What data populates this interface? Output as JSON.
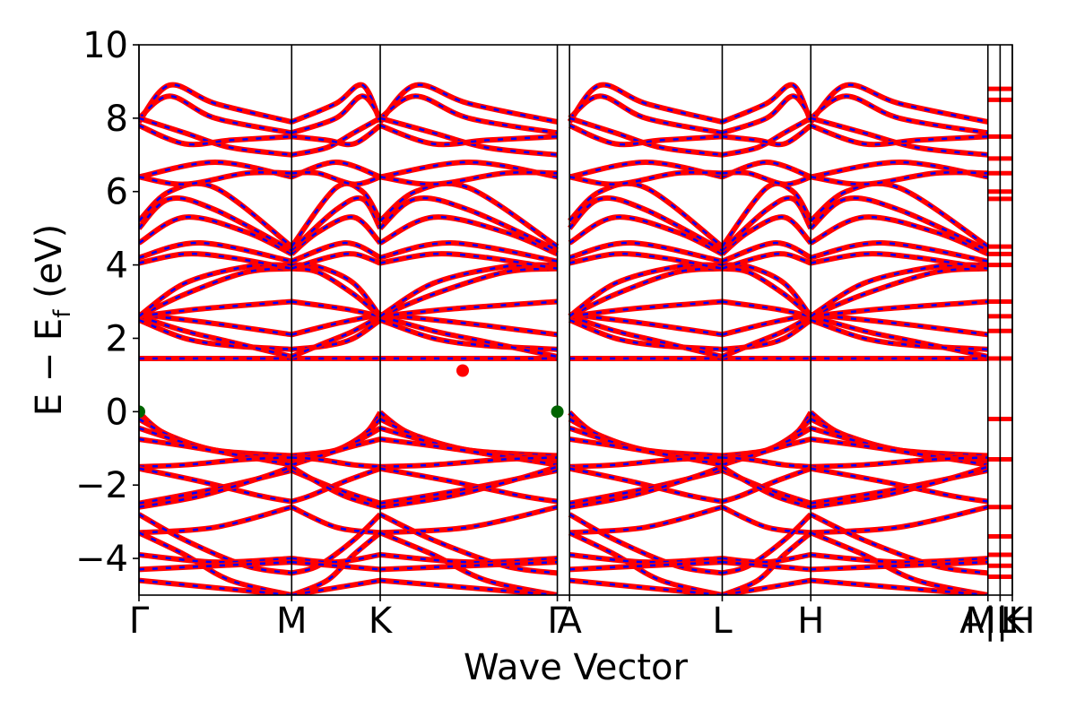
{
  "chart_data": {
    "type": "line",
    "xlabel": "Wave Vector",
    "ylabel_main": "E − E",
    "ylabel_sub": "f",
    "ylabel_unit": " (eV)",
    "ylim": [
      -5,
      10
    ],
    "yticks": [
      {
        "value": -4,
        "label": "−4"
      },
      {
        "value": -2,
        "label": "−2"
      },
      {
        "value": 0,
        "label": "0"
      },
      {
        "value": 2,
        "label": "2"
      },
      {
        "value": 4,
        "label": "4"
      },
      {
        "value": 6,
        "label": "6"
      },
      {
        "value": 8,
        "label": "8"
      },
      {
        "value": 10,
        "label": "10"
      }
    ],
    "kpath": [
      {
        "label": "Γ",
        "k": 0.0
      },
      {
        "label": "M",
        "k": 1.0
      },
      {
        "label": "K",
        "k": 1.58
      },
      {
        "label": "Γ",
        "k": 2.74
      },
      {
        "label": "A",
        "k": 2.82
      },
      {
        "label": "L",
        "k": 3.82
      },
      {
        "label": "H",
        "k": 4.4
      },
      {
        "label": "A|L",
        "k": 5.56
      },
      {
        "label": "M|H",
        "k": 5.64
      },
      {
        "label": "K",
        "k": 5.72
      }
    ],
    "k_max": 5.72,
    "special_points": {
      "vbm": [
        {
          "k": 0.0,
          "E": 0.0
        },
        {
          "k": 2.74,
          "E": 0.0
        }
      ],
      "cbm": [
        {
          "k": 2.12,
          "E": 1.12
        }
      ]
    },
    "colors": {
      "band_red": "#ff0000",
      "band_blue": "#0000ff",
      "vbm": "#006400",
      "cbm": "#ff0000"
    },
    "segment_templates": [
      [
        [
          0,
          -0.02
        ],
        [
          0.15,
          -0.55
        ],
        [
          0.4,
          -0.95
        ],
        [
          0.6,
          -1.1
        ],
        [
          1,
          -1.2
        ]
      ],
      [
        [
          0,
          -0.2
        ],
        [
          0.2,
          -0.65
        ],
        [
          0.5,
          -1.05
        ],
        [
          1,
          -1.3
        ]
      ],
      [
        [
          0,
          -0.45
        ],
        [
          0.3,
          -0.85
        ],
        [
          0.6,
          -1.15
        ],
        [
          1,
          -1.4
        ]
      ],
      [
        [
          0,
          -0.75
        ],
        [
          0.4,
          -1.0
        ],
        [
          1,
          -1.45
        ]
      ],
      [
        [
          0,
          -1.5
        ],
        [
          0.3,
          -1.45
        ],
        [
          0.7,
          -1.3
        ],
        [
          1,
          -1.25
        ]
      ],
      [
        [
          0,
          -1.55
        ],
        [
          0.4,
          -1.9
        ],
        [
          0.8,
          -2.3
        ],
        [
          1,
          -2.45
        ]
      ],
      [
        [
          0,
          -2.5
        ],
        [
          0.5,
          -2.1
        ],
        [
          1,
          -1.6
        ]
      ],
      [
        [
          0,
          -2.6
        ],
        [
          0.4,
          -2.3
        ],
        [
          0.8,
          -1.8
        ],
        [
          1,
          -1.5
        ]
      ],
      [
        [
          0,
          -3.3
        ],
        [
          0.5,
          -3.15
        ],
        [
          1,
          -2.6
        ]
      ],
      [
        [
          0,
          -2.8
        ],
        [
          0.3,
          -3.5
        ],
        [
          0.7,
          -4.2
        ],
        [
          1,
          -4.4
        ]
      ],
      [
        [
          0,
          -3.3
        ],
        [
          0.3,
          -3.9
        ],
        [
          0.6,
          -4.6
        ],
        [
          1,
          -5.0
        ]
      ],
      [
        [
          0,
          -3.9
        ],
        [
          0.5,
          -4.1
        ],
        [
          1,
          -4.0
        ]
      ],
      [
        [
          0,
          -4.3
        ],
        [
          0.5,
          -4.2
        ],
        [
          1,
          -4.1
        ]
      ],
      [
        [
          0,
          -4.6
        ],
        [
          0.5,
          -4.8
        ],
        [
          1,
          -5.0
        ]
      ],
      [
        [
          0,
          1.45
        ],
        [
          0.5,
          1.45
        ],
        [
          1,
          1.45
        ]
      ],
      [
        [
          0,
          2.5
        ],
        [
          0.3,
          2.0
        ],
        [
          0.6,
          1.8
        ],
        [
          1,
          1.7
        ]
      ],
      [
        [
          0,
          2.6
        ],
        [
          0.3,
          2.2
        ],
        [
          0.6,
          1.9
        ],
        [
          1,
          1.5
        ]
      ],
      [
        [
          0,
          2.65
        ],
        [
          0.5,
          2.4
        ],
        [
          1,
          2.1
        ]
      ],
      [
        [
          0,
          2.6
        ],
        [
          0.4,
          2.8
        ],
        [
          1,
          3.0
        ]
      ],
      [
        [
          0,
          2.6
        ],
        [
          0.3,
          3.2
        ],
        [
          0.7,
          3.8
        ],
        [
          1,
          3.9
        ]
      ],
      [
        [
          0,
          2.6
        ],
        [
          0.3,
          3.5
        ],
        [
          0.7,
          3.95
        ],
        [
          1,
          4.0
        ]
      ],
      [
        [
          0,
          4.05
        ],
        [
          0.3,
          4.3
        ],
        [
          0.6,
          4.2
        ],
        [
          1,
          3.9
        ]
      ],
      [
        [
          0,
          4.2
        ],
        [
          0.4,
          4.6
        ],
        [
          1,
          4.1
        ]
      ],
      [
        [
          0,
          4.6
        ],
        [
          0.3,
          5.3
        ],
        [
          0.7,
          4.9
        ],
        [
          1,
          4.3
        ]
      ],
      [
        [
          0,
          5.0
        ],
        [
          0.2,
          5.8
        ],
        [
          0.5,
          5.5
        ],
        [
          1,
          4.4
        ]
      ],
      [
        [
          0,
          5.2
        ],
        [
          0.2,
          6.0
        ],
        [
          0.5,
          6.1
        ],
        [
          1,
          4.5
        ]
      ],
      [
        [
          0,
          6.4
        ],
        [
          0.5,
          6.8
        ],
        [
          1,
          6.4
        ]
      ],
      [
        [
          0,
          6.4
        ],
        [
          0.3,
          6.2
        ],
        [
          0.7,
          6.5
        ],
        [
          1,
          6.5
        ]
      ],
      [
        [
          0,
          7.9
        ],
        [
          0.2,
          8.9
        ],
        [
          0.5,
          8.4
        ],
        [
          1,
          7.9
        ]
      ],
      [
        [
          0,
          8.0
        ],
        [
          0.2,
          8.6
        ],
        [
          0.5,
          8.0
        ],
        [
          1,
          7.6
        ]
      ],
      [
        [
          0,
          8.0
        ],
        [
          0.3,
          7.6
        ],
        [
          0.6,
          7.2
        ],
        [
          1,
          7.0
        ]
      ],
      [
        [
          0,
          7.8
        ],
        [
          0.3,
          7.3
        ],
        [
          0.6,
          7.4
        ],
        [
          1,
          7.5
        ]
      ]
    ]
  }
}
